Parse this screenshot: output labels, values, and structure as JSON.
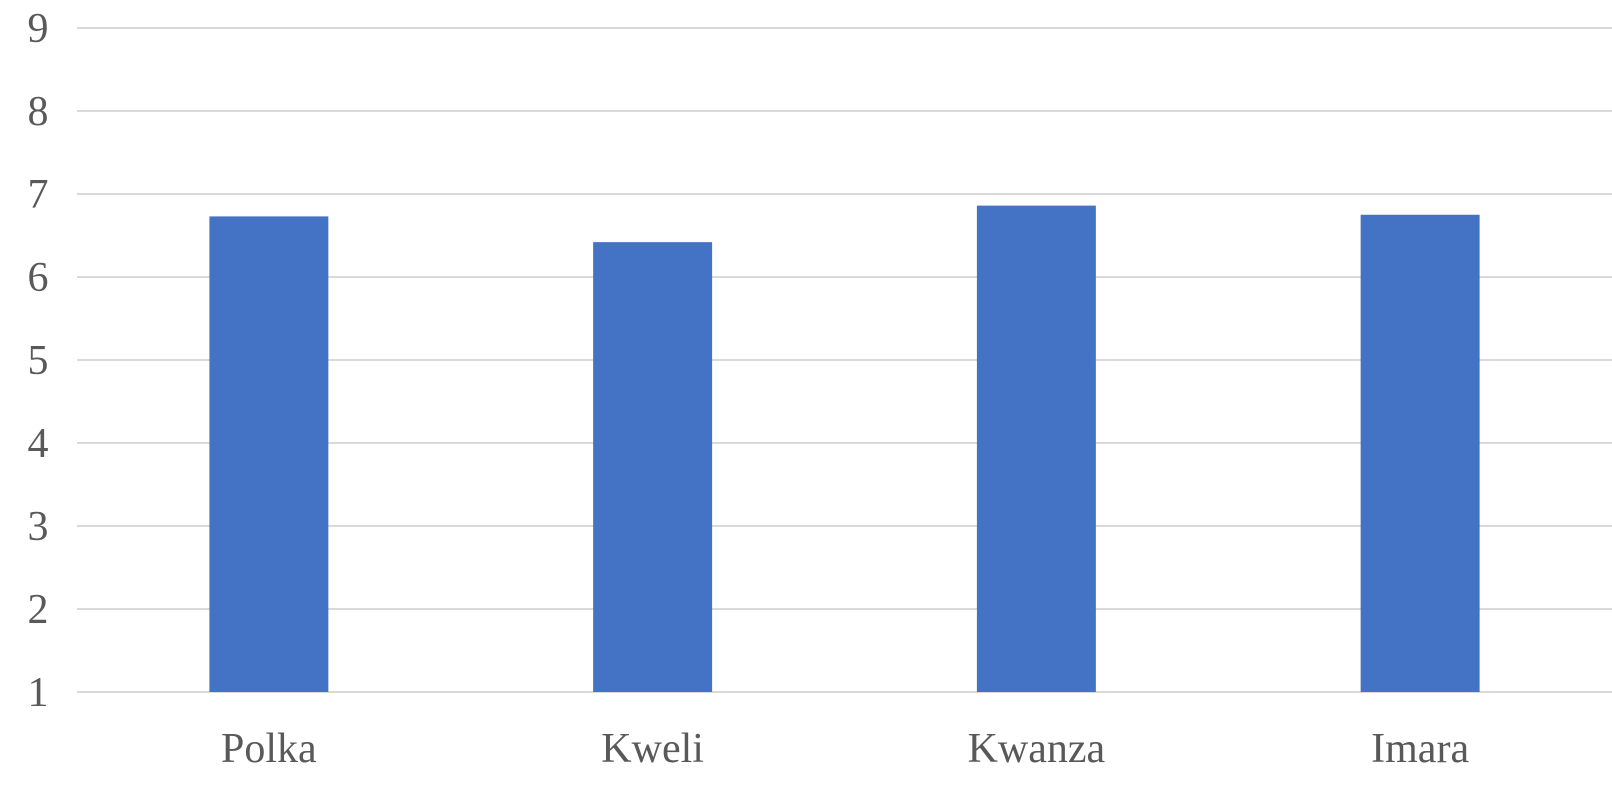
{
  "chart_data": {
    "type": "bar",
    "title": "",
    "xlabel": "",
    "ylabel": "",
    "categories": [
      "Polka",
      "Kweli",
      "Kwanza",
      "Imara"
    ],
    "values": [
      6.73,
      6.42,
      6.86,
      6.75
    ],
    "ylim": [
      1,
      9
    ],
    "yticks": [
      "1",
      "2",
      "3",
      "4",
      "5",
      "6",
      "7",
      "8",
      "9"
    ],
    "grid": true,
    "legend": "none",
    "bar_color": "#4472c4",
    "grid_color": "#d9d9d9",
    "text_color": "#595959"
  }
}
